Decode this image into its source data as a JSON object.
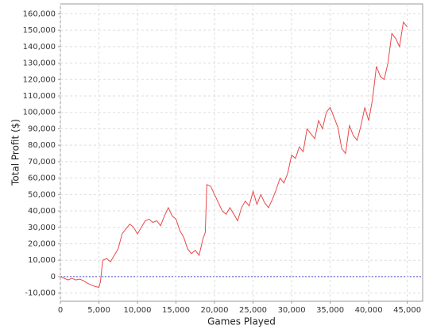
{
  "chart_data": {
    "type": "line",
    "x_label": "Games Played",
    "y_label": "Total Profit ($)",
    "x": [
      0,
      500,
      1000,
      1500,
      2000,
      2500,
      3000,
      3500,
      4000,
      4500,
      5000,
      5200,
      5500,
      6000,
      6500,
      7000,
      7500,
      8000,
      8500,
      9000,
      9500,
      10000,
      10500,
      11000,
      11500,
      12000,
      12500,
      13000,
      13500,
      14000,
      14500,
      15000,
      15500,
      16000,
      16500,
      17000,
      17500,
      18000,
      18500,
      18800,
      19000,
      19500,
      20000,
      20500,
      21000,
      21500,
      22000,
      22500,
      23000,
      23500,
      24000,
      24500,
      25000,
      25500,
      26000,
      26500,
      27000,
      27500,
      28000,
      28500,
      29000,
      29500,
      30000,
      30500,
      31000,
      31500,
      32000,
      32500,
      33000,
      33500,
      34000,
      34500,
      35000,
      35500,
      36000,
      36500,
      37000,
      37500,
      38000,
      38500,
      39000,
      39500,
      40000,
      40500,
      41000,
      41500,
      42000,
      42500,
      43000,
      43500,
      44000,
      44500,
      45000
    ],
    "series": [
      {
        "name": "Total Profit",
        "color": "#e8484a",
        "values": [
          0,
          -1000,
          -2000,
          -1000,
          -2000,
          -1500,
          -2500,
          -4000,
          -5000,
          -6000,
          -6500,
          -3000,
          10000,
          11000,
          9000,
          13000,
          17000,
          26000,
          29000,
          32000,
          30000,
          26000,
          30000,
          34000,
          35000,
          33000,
          34000,
          31000,
          37000,
          42000,
          37000,
          35000,
          28000,
          24000,
          17000,
          14000,
          16000,
          13000,
          23000,
          27000,
          56000,
          55000,
          50000,
          45000,
          40000,
          38000,
          42000,
          38000,
          34000,
          42000,
          46000,
          43000,
          52000,
          44000,
          50000,
          45000,
          42000,
          47000,
          53000,
          60000,
          57000,
          63000,
          74000,
          72000,
          79000,
          76000,
          90000,
          87000,
          84000,
          95000,
          90000,
          100000,
          103000,
          97000,
          91000,
          78000,
          75000,
          92000,
          86000,
          83000,
          92000,
          103000,
          95000,
          108000,
          128000,
          122000,
          120000,
          130000,
          148000,
          145000,
          140000,
          155000,
          152000
        ]
      }
    ],
    "xlim": [
      0,
      47000
    ],
    "ylim": [
      -15000,
      166000
    ],
    "xticks": [
      0,
      {
        "value": 5000,
        "label": "5,000"
      },
      {
        "value": 10000,
        "label": "10,000"
      },
      {
        "value": 15000,
        "label": "15,000"
      },
      {
        "value": 20000,
        "label": "20,000"
      },
      {
        "value": 25000,
        "label": "25,000"
      },
      {
        "value": 30000,
        "label": "30,000"
      },
      {
        "value": 35000,
        "label": "35,000"
      },
      {
        "value": 40000,
        "label": "40,000"
      },
      {
        "value": 45000,
        "label": "45,000"
      }
    ],
    "yticks": [
      {
        "value": -10000,
        "label": "-10,000"
      },
      0,
      {
        "value": 10000,
        "label": "10,000"
      },
      {
        "value": 20000,
        "label": "20,000"
      },
      {
        "value": 30000,
        "label": "30,000"
      },
      {
        "value": 40000,
        "label": "40,000"
      },
      {
        "value": 50000,
        "label": "50,000"
      },
      {
        "value": 60000,
        "label": "60,000"
      },
      {
        "value": 70000,
        "label": "70,000"
      },
      {
        "value": 80000,
        "label": "80,000"
      },
      {
        "value": 90000,
        "label": "90,000"
      },
      {
        "value": 100000,
        "label": "100,000"
      },
      {
        "value": 110000,
        "label": "110,000"
      },
      {
        "value": 120000,
        "label": "120,000"
      },
      {
        "value": 130000,
        "label": "130,000"
      },
      {
        "value": 140000,
        "label": "140,000"
      },
      {
        "value": 150000,
        "label": "150,000"
      },
      {
        "value": 160000,
        "label": "160,000"
      }
    ],
    "grid": true,
    "zero_line_color": "#5050d0"
  }
}
